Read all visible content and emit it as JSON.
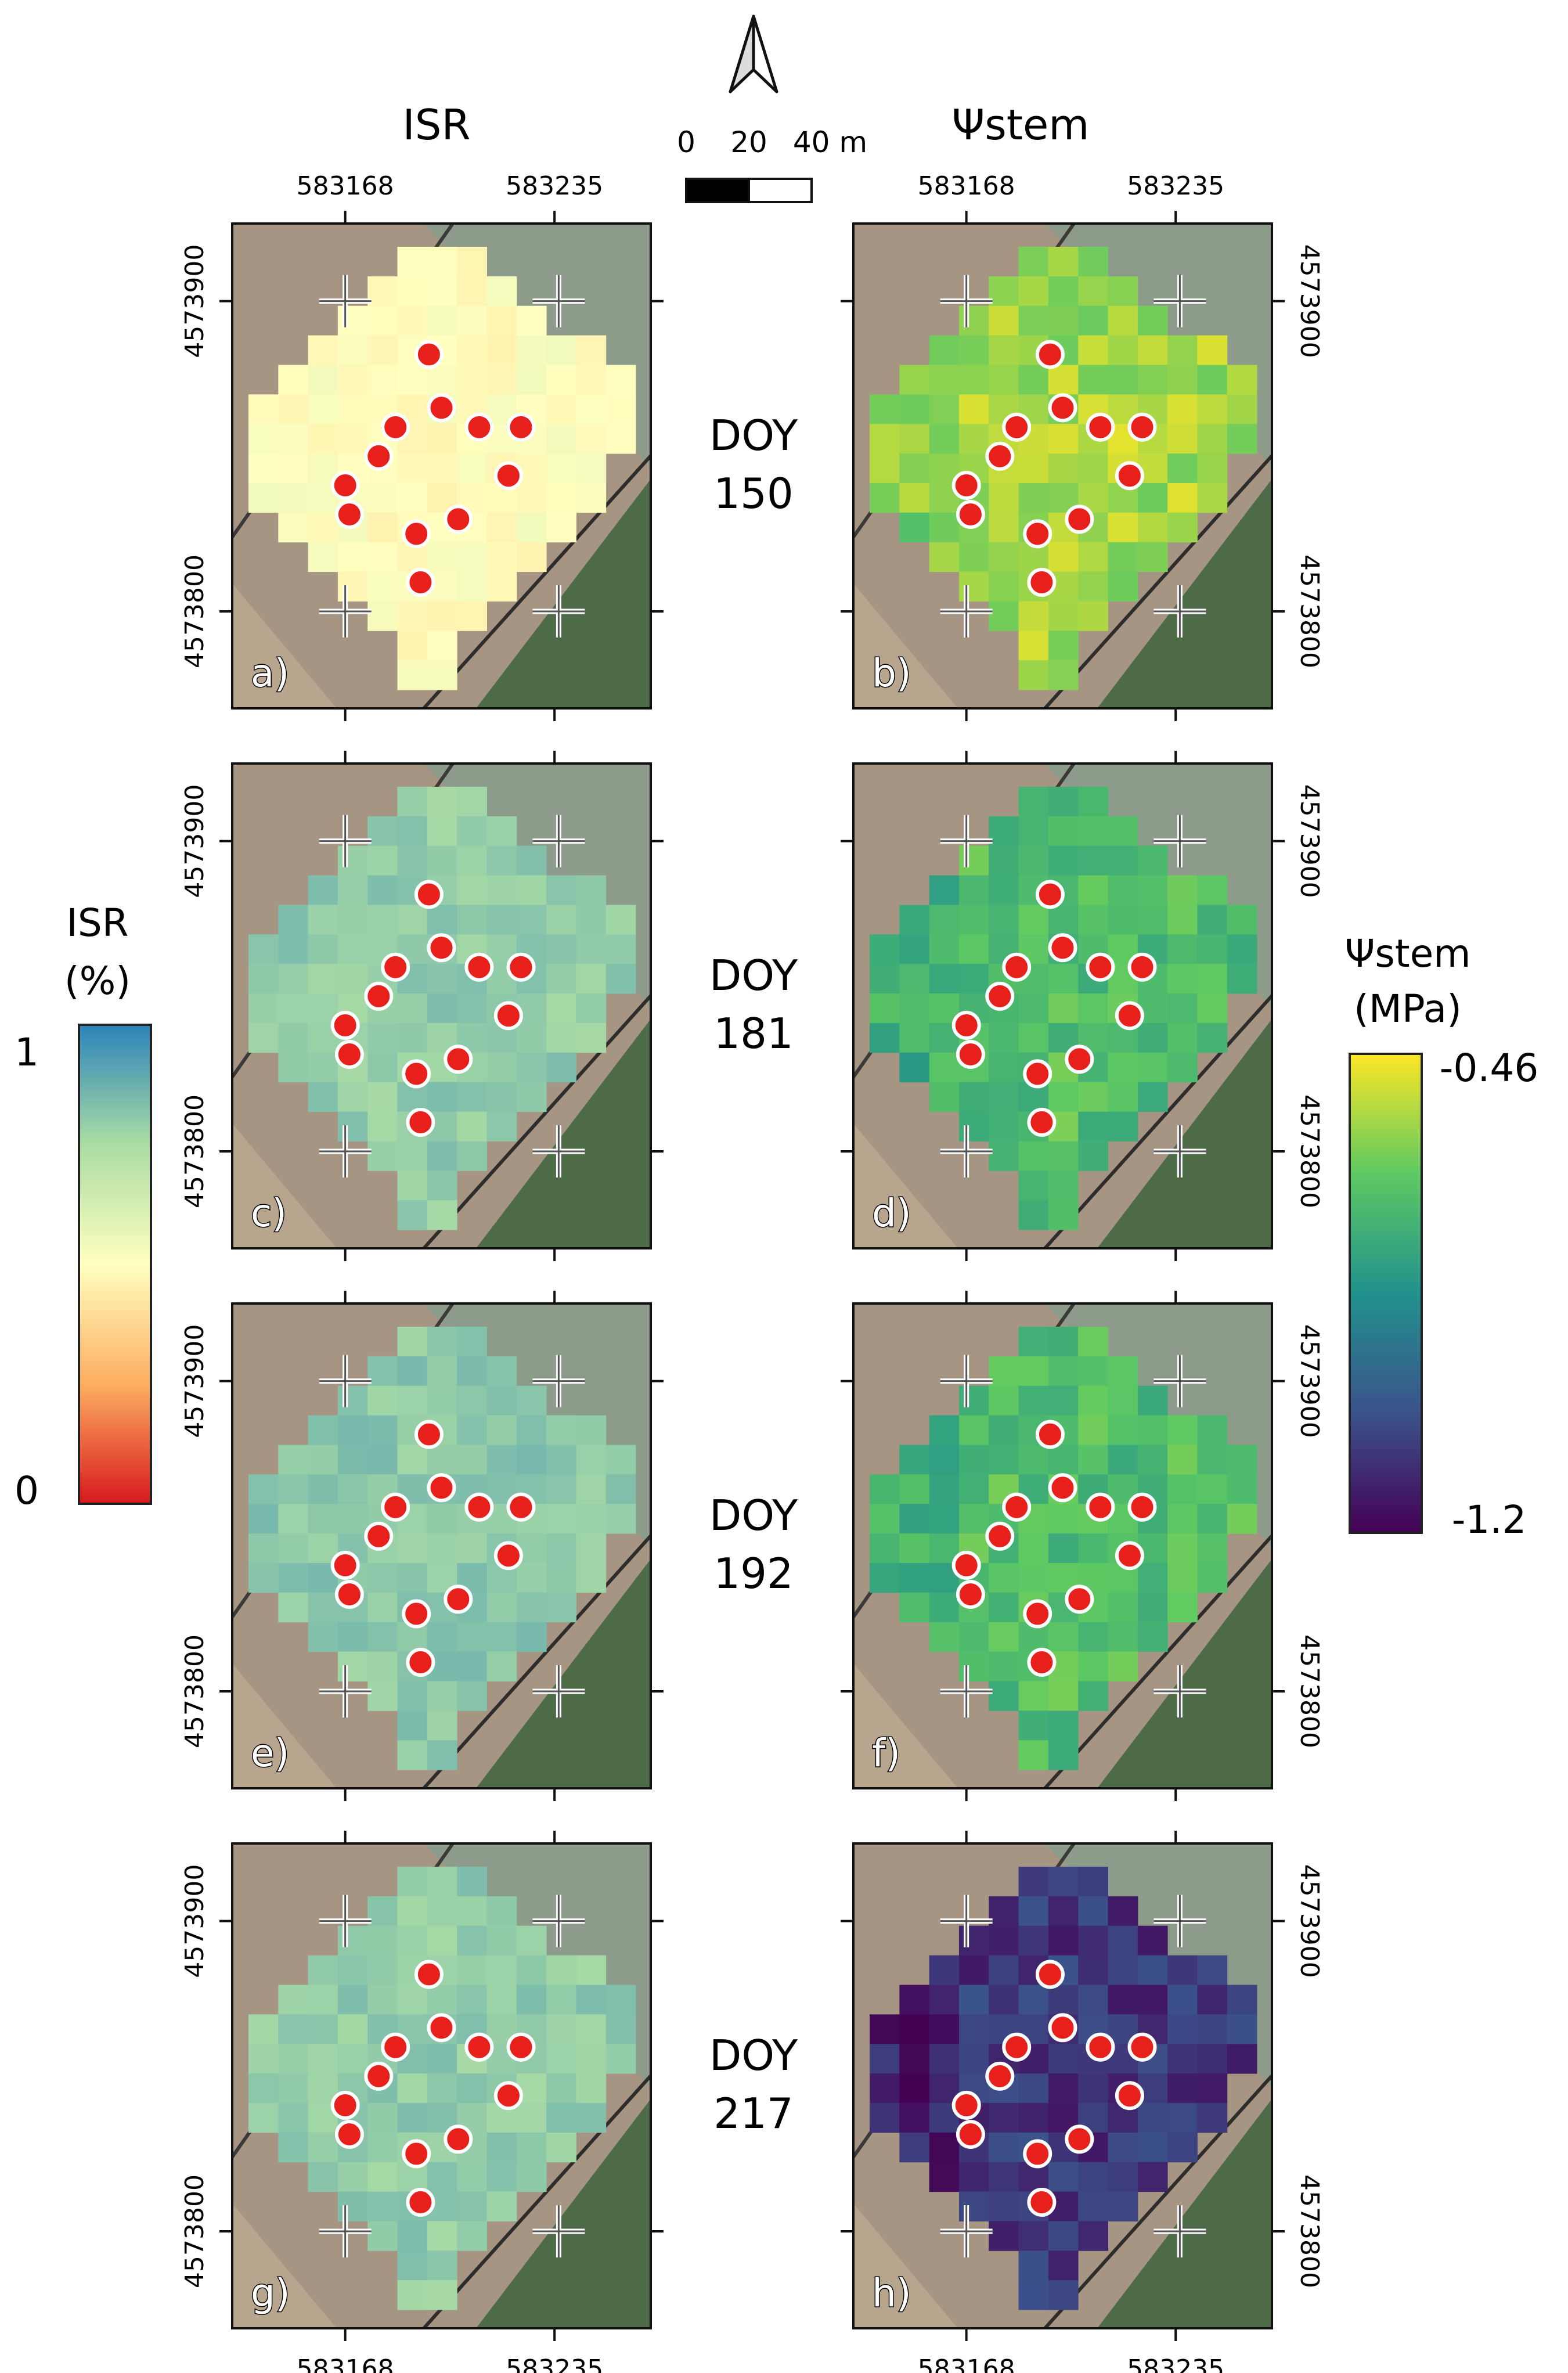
{
  "headers": {
    "left": "ISR",
    "right": "Ψstem"
  },
  "north_arrow": "north-arrow",
  "scale_bar": {
    "labels": [
      "0",
      "20",
      "40 m"
    ]
  },
  "easting_ticks": [
    "583168",
    "583235"
  ],
  "northing_ticks": [
    "4573900",
    "4573800"
  ],
  "rows": [
    {
      "doy_label": "DOY",
      "doy": "150",
      "isr_panel": "a)",
      "stem_panel": "b)",
      "isr_mean": 0.5,
      "stem_mean": -0.56
    },
    {
      "doy_label": "DOY",
      "doy": "181",
      "isr_panel": "c)",
      "stem_panel": "d)",
      "isr_mean": 0.8,
      "stem_mean": -0.68
    },
    {
      "doy_label": "DOY",
      "doy": "192",
      "isr_panel": "e)",
      "stem_panel": "f)",
      "isr_mean": 0.81,
      "stem_mean": -0.68
    },
    {
      "doy_label": "DOY",
      "doy": "217",
      "isr_panel": "g)",
      "stem_panel": "h)",
      "isr_mean": 0.8,
      "stem_mean": -1.08
    }
  ],
  "isr_legend": {
    "title_line1": "ISR",
    "title_line2": "(%)",
    "max_label": "1",
    "min_label": "0",
    "min": 0,
    "max": 1
  },
  "stem_legend": {
    "title_line1": "Ψstem",
    "title_line2": "(MPa)",
    "max_label": "-0.46",
    "min_label": "-1.2",
    "min": -1.2,
    "max": -0.46
  },
  "colors": {
    "point_fill": "#e8201c",
    "point_stroke": "#ffffff",
    "panel_border": "#111111"
  }
}
